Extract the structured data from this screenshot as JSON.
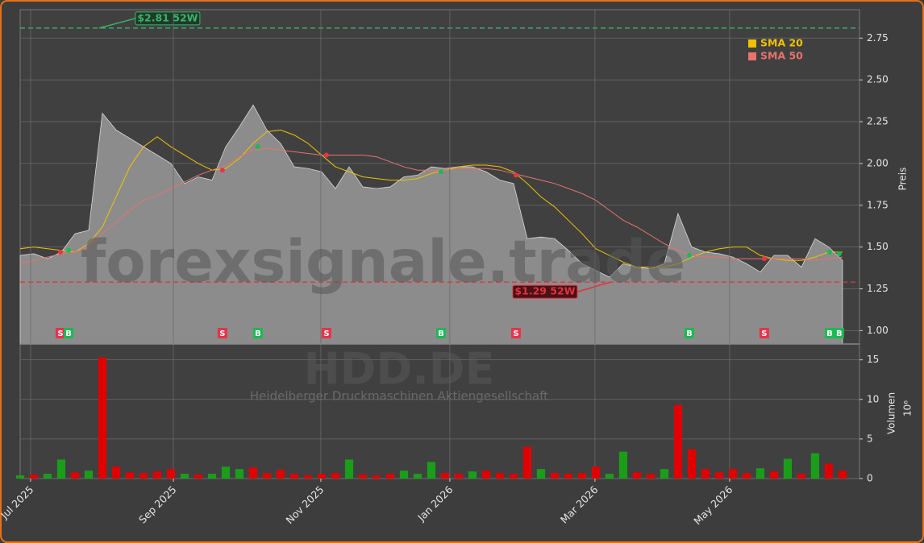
{
  "chart_data": [
    {
      "type": "line",
      "title": "HDD.DE",
      "subtitle": "Heidelberger Druckmaschinen Aktiengesellschaft",
      "watermark": "forexsignale.trade",
      "ylabel": "Preis",
      "xlim": [
        0,
        61.24
      ],
      "ylim": [
        0.92,
        2.92
      ],
      "yticks": [
        {
          "value": 1,
          "label": "1.00"
        },
        {
          "value": 1.25,
          "label": "1.25"
        },
        {
          "value": 1.5,
          "label": "1.50"
        },
        {
          "value": 1.75,
          "label": "1.75"
        },
        {
          "value": 2,
          "label": "2.00"
        },
        {
          "value": 2.25,
          "label": "2.25"
        },
        {
          "value": 2.5,
          "label": "2.50"
        },
        {
          "value": 2.75,
          "label": "2.75"
        }
      ],
      "grid": true,
      "area_color": "#8c8c8c",
      "legend": "upper right",
      "values": [
        1.45,
        1.46,
        1.43,
        1.47,
        1.58,
        1.6,
        2.3,
        2.2,
        2.15,
        2.1,
        2.05,
        2.0,
        1.88,
        1.92,
        1.9,
        2.1,
        2.22,
        2.35,
        2.2,
        2.12,
        1.98,
        1.97,
        1.95,
        1.85,
        1.98,
        1.86,
        1.85,
        1.86,
        1.92,
        1.93,
        1.98,
        1.97,
        1.98,
        1.98,
        1.95,
        1.9,
        1.88,
        1.55,
        1.56,
        1.55,
        1.48,
        1.4,
        1.36,
        1.32,
        1.4,
        1.38,
        1.37,
        1.4,
        1.7,
        1.5,
        1.47,
        1.46,
        1.44,
        1.4,
        1.35,
        1.45,
        1.45,
        1.38,
        1.55,
        1.5,
        1.42
      ],
      "series": [
        {
          "name": "SMA 20",
          "color": "#f2c200",
          "values": [
            1.49,
            1.5,
            1.49,
            1.48,
            1.47,
            1.52,
            1.62,
            1.8,
            1.98,
            2.1,
            2.16,
            2.1,
            2.05,
            2.0,
            1.96,
            1.97,
            2.03,
            2.12,
            2.19,
            2.2,
            2.17,
            2.12,
            2.05,
            1.98,
            1.95,
            1.92,
            1.91,
            1.9,
            1.9,
            1.91,
            1.94,
            1.96,
            1.98,
            1.99,
            1.99,
            1.98,
            1.95,
            1.88,
            1.8,
            1.74,
            1.66,
            1.58,
            1.49,
            1.45,
            1.41,
            1.38,
            1.38,
            1.38,
            1.4,
            1.44,
            1.47,
            1.49,
            1.5,
            1.5,
            1.45,
            1.43,
            1.42,
            1.42,
            1.44,
            1.47,
            1.47
          ]
        },
        {
          "name": "SMA 50",
          "color": "#e8736b",
          "values": [
            1.4,
            1.42,
            1.44,
            1.46,
            1.47,
            1.5,
            1.58,
            1.65,
            1.72,
            1.78,
            1.81,
            1.85,
            1.89,
            1.93,
            1.96,
            1.99,
            2.04,
            2.08,
            2.09,
            2.08,
            2.07,
            2.06,
            2.05,
            2.05,
            2.05,
            2.05,
            2.04,
            2.01,
            1.98,
            1.96,
            1.96,
            1.96,
            1.97,
            1.97,
            1.97,
            1.96,
            1.94,
            1.92,
            1.9,
            1.88,
            1.85,
            1.82,
            1.78,
            1.72,
            1.66,
            1.62,
            1.57,
            1.52,
            1.48,
            1.45,
            1.44,
            1.44,
            1.43,
            1.43,
            1.43,
            1.43,
            1.43,
            1.43,
            1.42,
            1.43,
            1.44
          ]
        }
      ],
      "hlines": [
        {
          "value": 2.81,
          "color": "#3cb36b"
        },
        {
          "value": 1.29,
          "color": "#e0333f"
        }
      ],
      "annotations": [
        {
          "text": "$2.81 52W",
          "x": 5.76,
          "value": 2.81,
          "color": "#3cb36b"
        },
        {
          "text": "$1.29 52W",
          "x": 43.06,
          "value": 1.29,
          "color": "#e0333f"
        }
      ],
      "signals": [
        {
          "label": "S",
          "x": 2.94,
          "value": 1.47,
          "color": "#e8334a"
        },
        {
          "label": "B",
          "x": 3.53,
          "value": 1.48,
          "color": "#1db954"
        },
        {
          "label": "S",
          "x": 14.76,
          "value": 1.96,
          "color": "#e8334a"
        },
        {
          "label": "B",
          "x": 17.35,
          "value": 2.1,
          "color": "#1db954"
        },
        {
          "label": "S",
          "x": 22.35,
          "value": 2.05,
          "color": "#e8334a"
        },
        {
          "label": "B",
          "x": 30.71,
          "value": 1.95,
          "color": "#1db954"
        },
        {
          "label": "S",
          "x": 36.18,
          "value": 1.93,
          "color": "#e8334a"
        },
        {
          "label": "B",
          "x": 48.82,
          "value": 1.45,
          "color": "#1db954"
        },
        {
          "label": "S",
          "x": 54.29,
          "value": 1.43,
          "color": "#e8334a"
        },
        {
          "label": "B",
          "x": 59.06,
          "value": 1.47,
          "color": "#1db954"
        },
        {
          "label": "B",
          "x": 59.76,
          "value": 1.46,
          "color": "#1db954"
        }
      ]
    },
    {
      "type": "bar",
      "ylabel": "Volumen",
      "offset_text": "10⁶",
      "xlim": [
        0,
        61.24
      ],
      "ylim": [
        0,
        17
      ],
      "yticks": [
        0,
        5,
        10,
        15
      ],
      "grid": true,
      "xticks": [
        {
          "value": 0.76,
          "label": "Jul 2025"
        },
        {
          "value": 11.18,
          "label": "Sep 2025"
        },
        {
          "value": 21.94,
          "label": "Nov 2025"
        },
        {
          "value": 31.35,
          "label": "Jan 2026"
        },
        {
          "value": 41.94,
          "label": "Mar 2026"
        },
        {
          "value": 51.76,
          "label": "May 2026"
        }
      ],
      "values": [
        0.4,
        0.5,
        0.6,
        2.4,
        0.8,
        1.0,
        15.3,
        1.5,
        0.8,
        0.7,
        0.9,
        1.2,
        0.6,
        0.5,
        0.6,
        1.5,
        1.2,
        1.4,
        0.7,
        1.1,
        0.6,
        0.4,
        0.6,
        0.7,
        2.4,
        0.5,
        0.4,
        0.6,
        1.0,
        0.6,
        2.1,
        0.7,
        0.6,
        0.9,
        1.0,
        0.7,
        0.6,
        4.0,
        1.2,
        0.7,
        0.6,
        0.7,
        1.5,
        0.6,
        3.4,
        0.8,
        0.6,
        1.2,
        9.3,
        3.7,
        1.2,
        0.8,
        1.2,
        0.7,
        1.3,
        0.9,
        2.5,
        0.6,
        3.2,
        1.9,
        1.0
      ],
      "colors": [
        "#1a9e1a",
        "#e00000",
        "#1a9e1a",
        "#1a9e1a",
        "#e00000",
        "#1a9e1a",
        "#e00000",
        "#e00000",
        "#e00000",
        "#e00000",
        "#e00000",
        "#e00000",
        "#1a9e1a",
        "#e00000",
        "#1a9e1a",
        "#1a9e1a",
        "#1a9e1a",
        "#e00000",
        "#e00000",
        "#e00000",
        "#e00000",
        "#e00000",
        "#e00000",
        "#e00000",
        "#1a9e1a",
        "#e00000",
        "#e00000",
        "#e00000",
        "#1a9e1a",
        "#1a9e1a",
        "#1a9e1a",
        "#e00000",
        "#e00000",
        "#1a9e1a",
        "#e00000",
        "#e00000",
        "#e00000",
        "#e00000",
        "#1a9e1a",
        "#e00000",
        "#e00000",
        "#e00000",
        "#e00000",
        "#1a9e1a",
        "#1a9e1a",
        "#e00000",
        "#e00000",
        "#1a9e1a",
        "#e00000",
        "#e00000",
        "#e00000",
        "#e00000",
        "#e00000",
        "#e00000",
        "#1a9e1a",
        "#e00000",
        "#1a9e1a",
        "#e00000",
        "#1a9e1a",
        "#e00000",
        "#e00000"
      ]
    }
  ]
}
